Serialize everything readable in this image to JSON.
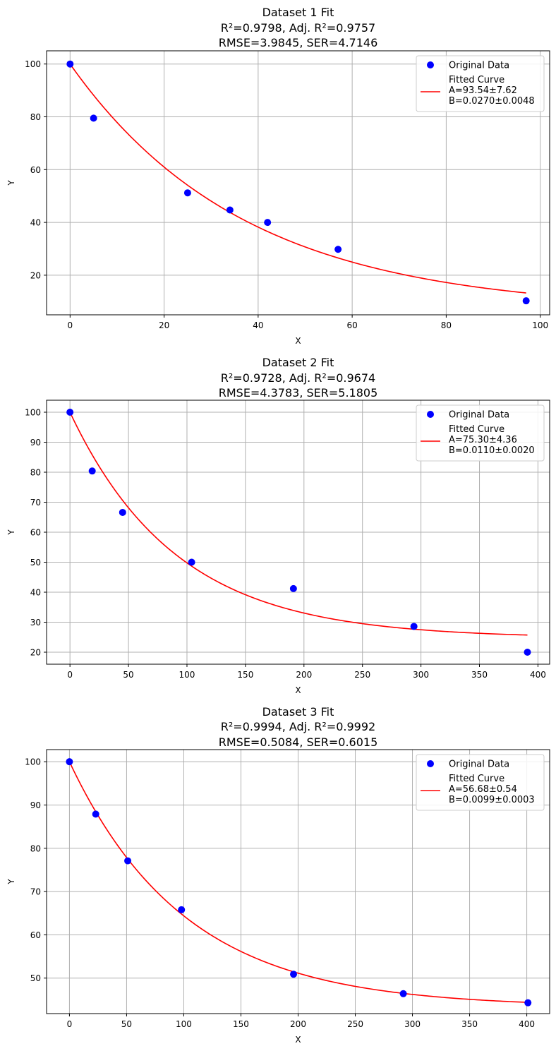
{
  "chart_data": [
    {
      "type": "scatter",
      "title_lines": [
        "Dataset 1 Fit",
        "R²=0.9798, Adj. R²=0.9757",
        "RMSE=3.9845, SER=4.7146"
      ],
      "xlabel": "X",
      "ylabel": "Y",
      "xlim": [
        -5,
        102
      ],
      "ylim": [
        5,
        105
      ],
      "xticks": [
        0,
        20,
        40,
        60,
        80,
        100
      ],
      "yticks": [
        20,
        40,
        60,
        80,
        100
      ],
      "grid": true,
      "legend_position": "top-right",
      "series": [
        {
          "name": "Original Data",
          "kind": "scatter",
          "color": "#0000ff",
          "x": [
            0,
            5,
            25,
            34,
            42,
            57,
            97
          ],
          "y": [
            100,
            79.5,
            51.2,
            44.7,
            40,
            29.8,
            10.3
          ]
        },
        {
          "name": "Fitted Curve",
          "kind": "line",
          "color": "#ff0000",
          "param_lines": [
            "A=93.54±7.62",
            "B=0.0270±0.0048"
          ],
          "x_range": [
            0,
            97
          ],
          "A": 93.54,
          "B": 0.027
        }
      ]
    },
    {
      "type": "scatter",
      "title_lines": [
        "Dataset 2 Fit",
        "R²=0.9728, Adj. R²=0.9674",
        "RMSE=4.3783, SER=5.1805"
      ],
      "xlabel": "X",
      "ylabel": "Y",
      "xlim": [
        -20,
        410
      ],
      "ylim": [
        16,
        104
      ],
      "xticks": [
        0,
        50,
        100,
        150,
        200,
        250,
        300,
        350,
        400
      ],
      "yticks": [
        20,
        30,
        40,
        50,
        60,
        70,
        80,
        90,
        100
      ],
      "grid": true,
      "legend_position": "top-right",
      "series": [
        {
          "name": "Original Data",
          "kind": "scatter",
          "color": "#0000ff",
          "x": [
            0,
            19,
            45,
            104,
            191,
            294,
            391
          ],
          "y": [
            100,
            80.4,
            66.6,
            50,
            41.2,
            28.6,
            20
          ]
        },
        {
          "name": "Fitted Curve",
          "kind": "line",
          "color": "#ff0000",
          "param_lines": [
            "A=75.30±4.36",
            "B=0.0110±0.0020"
          ],
          "x_range": [
            0,
            391
          ],
          "A": 75.3,
          "B": 0.011
        }
      ]
    },
    {
      "type": "scatter",
      "title_lines": [
        "Dataset 3 Fit",
        "R²=0.9994, Adj. R²=0.9992",
        "RMSE=0.5084, SER=0.6015"
      ],
      "xlabel": "X",
      "ylabel": "Y",
      "xlim": [
        -20,
        420
      ],
      "ylim": [
        41.8,
        102.8
      ],
      "xticks": [
        0,
        50,
        100,
        150,
        200,
        250,
        300,
        350,
        400
      ],
      "yticks": [
        50,
        60,
        70,
        80,
        90,
        100
      ],
      "grid": true,
      "legend_position": "top-right",
      "series": [
        {
          "name": "Original Data",
          "kind": "scatter",
          "color": "#0000ff",
          "x": [
            0,
            23,
            51,
            98,
            196,
            292,
            401
          ],
          "y": [
            100,
            87.9,
            77.1,
            65.8,
            50.9,
            46.4,
            44.3
          ]
        },
        {
          "name": "Fitted Curve",
          "kind": "line",
          "color": "#ff0000",
          "param_lines": [
            "A=56.68±0.54",
            "B=0.0099±0.0003"
          ],
          "x_range": [
            0,
            401
          ],
          "A": 56.68,
          "B": 0.0099
        }
      ]
    }
  ]
}
